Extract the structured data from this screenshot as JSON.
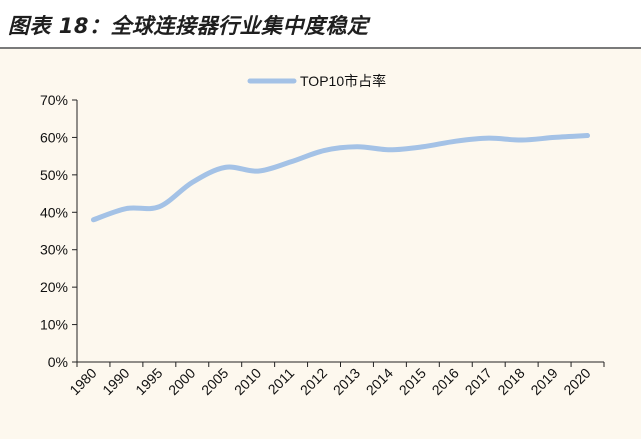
{
  "title": "图表 18：全球连接器行业集中度稳定",
  "colors": {
    "line": "#a4c2e6",
    "axis": "#222222",
    "background": "#fdf8ee"
  },
  "chart_data": {
    "type": "line",
    "title": "",
    "xlabel": "",
    "ylabel": "",
    "categories": [
      "1980",
      "1990",
      "1995",
      "2000",
      "2005",
      "2010",
      "2011",
      "2012",
      "2013",
      "2014",
      "2015",
      "2016",
      "2017",
      "2018",
      "2019",
      "2020"
    ],
    "series": [
      {
        "name": "TOP10市占率",
        "values": [
          0.38,
          0.41,
          0.415,
          0.48,
          0.52,
          0.51,
          0.535,
          0.565,
          0.575,
          0.567,
          0.575,
          0.59,
          0.598,
          0.593,
          0.6,
          0.605
        ]
      }
    ],
    "ylim": [
      0,
      0.7
    ],
    "yticks": [
      "0%",
      "10%",
      "20%",
      "30%",
      "40%",
      "50%",
      "60%",
      "70%"
    ],
    "legend": "top-center",
    "grid": false
  }
}
